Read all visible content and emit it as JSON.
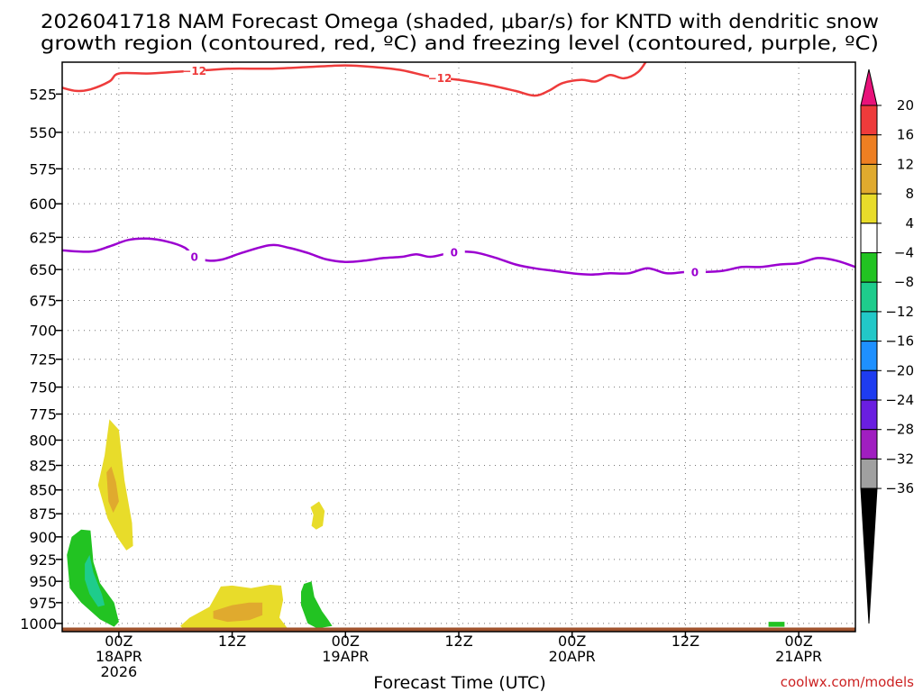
{
  "title_line1": "2026041718 NAM Forecast Omega (shaded, μbar/s) for KNTD with dendritic snow",
  "title_line2": "growth region (contoured, red, ºC) and freezing level (contoured, purple, ºC)",
  "credit": "coolwx.com/models",
  "chart_data": {
    "type": "heatmap",
    "title": "2026041718 NAM Forecast Omega (shaded, μbar/s) for KNTD with dendritic snow growth region (contoured, red, ºC) and freezing level (contoured, purple, ºC)",
    "xlabel": "Forecast Time (UTC)",
    "ylabel": "",
    "x_range_hours": [
      -6,
      78
    ],
    "y_range_mb": [
      1010,
      505
    ],
    "y_scale": "log-pressure (inverted)",
    "y_ticks": [
      525,
      550,
      575,
      600,
      625,
      650,
      675,
      700,
      725,
      750,
      775,
      800,
      825,
      850,
      875,
      900,
      925,
      950,
      975,
      1000
    ],
    "x_ticks": [
      {
        "hour": 0,
        "lines": [
          "00Z",
          "18APR",
          "2026"
        ]
      },
      {
        "hour": 12,
        "lines": [
          "12Z"
        ]
      },
      {
        "hour": 24,
        "lines": [
          "00Z",
          "19APR"
        ]
      },
      {
        "hour": 36,
        "lines": [
          "12Z"
        ]
      },
      {
        "hour": 48,
        "lines": [
          "00Z",
          "20APR"
        ]
      },
      {
        "hour": 60,
        "lines": [
          "12Z"
        ]
      },
      {
        "hour": 72,
        "lines": [
          "00Z",
          "21APR"
        ]
      }
    ],
    "grid": true,
    "colorbar": {
      "labels": [
        "20",
        "16",
        "12",
        "8",
        "4",
        "−4",
        "−8",
        "−12",
        "−16",
        "−20",
        "−24",
        "−28",
        "−32",
        "−36"
      ],
      "colors": [
        "#e8127a",
        "#ee3b3b",
        "#ee7f22",
        "#e0aa2e",
        "#e8dc2a",
        "#ffffff",
        "#22c322",
        "#1ecc8c",
        "#22c8c8",
        "#1e90ff",
        "#1e3cf0",
        "#6a1ee0",
        "#a01ec0",
        "#a0a0a0",
        "#000000"
      ],
      "position": "right"
    },
    "contours": [
      {
        "value": -12,
        "color": "#ee3b3b",
        "labels": [
          "−12",
          "−12"
        ],
        "points": [
          [
            -6,
            521
          ],
          [
            -4.5,
            523
          ],
          [
            -3,
            522
          ],
          [
            -1,
            517
          ],
          [
            0,
            512
          ],
          [
            3,
            512
          ],
          [
            6,
            511
          ],
          [
            9,
            510
          ],
          [
            12,
            509
          ],
          [
            16,
            509
          ],
          [
            20,
            508
          ],
          [
            24,
            507
          ],
          [
            27,
            508
          ],
          [
            30,
            510
          ],
          [
            33,
            514
          ],
          [
            36,
            516
          ],
          [
            39,
            519
          ],
          [
            42,
            523
          ],
          [
            44,
            526
          ],
          [
            45.5,
            523
          ],
          [
            47,
            518
          ],
          [
            49,
            516
          ],
          [
            50.5,
            517
          ],
          [
            52,
            513
          ],
          [
            53.5,
            515
          ],
          [
            55,
            511
          ],
          [
            56,
            503
          ]
        ]
      },
      {
        "value": 0,
        "color": "#9b00d0",
        "labels": [
          "0",
          "0",
          "0"
        ],
        "points": [
          [
            -6,
            635
          ],
          [
            -3,
            636
          ],
          [
            -1,
            632
          ],
          [
            1,
            627
          ],
          [
            3,
            626
          ],
          [
            5,
            628
          ],
          [
            7,
            633
          ],
          [
            8,
            640
          ],
          [
            9.5,
            643
          ],
          [
            11,
            642
          ],
          [
            13,
            637
          ],
          [
            16,
            631
          ],
          [
            18,
            633
          ],
          [
            20,
            637
          ],
          [
            22,
            642
          ],
          [
            24,
            644
          ],
          [
            26,
            643
          ],
          [
            28,
            641
          ],
          [
            30,
            640
          ],
          [
            31.5,
            638
          ],
          [
            33,
            640
          ],
          [
            35,
            637
          ],
          [
            36.5,
            636
          ],
          [
            38,
            637
          ],
          [
            40,
            641
          ],
          [
            42,
            646
          ],
          [
            44,
            649
          ],
          [
            46,
            651
          ],
          [
            48,
            653
          ],
          [
            50,
            654
          ],
          [
            52,
            653
          ],
          [
            54,
            653
          ],
          [
            56,
            649
          ],
          [
            58,
            653
          ],
          [
            60,
            652
          ],
          [
            62,
            652
          ],
          [
            64,
            651
          ],
          [
            66,
            648
          ],
          [
            68,
            648
          ],
          [
            70,
            646
          ],
          [
            72,
            645
          ],
          [
            74,
            641
          ],
          [
            76,
            643
          ],
          [
            78,
            648
          ]
        ]
      }
    ],
    "shaded_regions": [
      {
        "omega_bin": "4 to 8",
        "color": "#e8dc2a",
        "points": [
          [
            -2.2,
            845
          ],
          [
            -1.5,
            815
          ],
          [
            -1,
            780
          ],
          [
            0,
            790
          ],
          [
            0.6,
            840
          ],
          [
            1.4,
            885
          ],
          [
            1.5,
            910
          ],
          [
            0.8,
            915
          ],
          [
            -0.2,
            900
          ],
          [
            -1.2,
            880
          ]
        ]
      },
      {
        "omega_bin": "8 to 12",
        "color": "#e0aa2e",
        "points": [
          [
            -1.3,
            832
          ],
          [
            -0.8,
            826
          ],
          [
            -0.3,
            842
          ],
          [
            0,
            862
          ],
          [
            -0.6,
            874
          ],
          [
            -1.1,
            862
          ]
        ]
      },
      {
        "omega_bin": "4 to 8",
        "color": "#e8dc2a",
        "points": [
          [
            20.3,
            868
          ],
          [
            21.2,
            862
          ],
          [
            21.8,
            872
          ],
          [
            21.6,
            888
          ],
          [
            20.9,
            892
          ],
          [
            20.4,
            888
          ],
          [
            20.6,
            876
          ]
        ]
      },
      {
        "omega_bin": "4 to 8",
        "color": "#e8dc2a",
        "points": [
          [
            6.5,
            1003
          ],
          [
            7.5,
            993
          ],
          [
            9.6,
            980
          ],
          [
            10.8,
            956
          ],
          [
            12,
            955
          ],
          [
            14,
            958
          ],
          [
            16,
            954
          ],
          [
            17.2,
            955
          ],
          [
            17.4,
            972
          ],
          [
            17,
            993
          ],
          [
            18,
            1008
          ],
          [
            12,
            1010
          ],
          [
            7,
            1008
          ]
        ]
      },
      {
        "omega_bin": "8 to 12",
        "color": "#e0aa2e",
        "points": [
          [
            10,
            985
          ],
          [
            12,
            978
          ],
          [
            13.8,
            975
          ],
          [
            15.2,
            975
          ],
          [
            15.2,
            990
          ],
          [
            13.8,
            996
          ],
          [
            11.5,
            998
          ],
          [
            10,
            994
          ]
        ]
      },
      {
        "omega_bin": "-8 to -4",
        "color": "#22c322",
        "points": [
          [
            -5.5,
            920
          ],
          [
            -5,
            900
          ],
          [
            -4,
            892
          ],
          [
            -3,
            893
          ],
          [
            -2.7,
            928
          ],
          [
            -2,
            952
          ],
          [
            -0.5,
            975
          ],
          [
            0,
            998
          ],
          [
            -0.5,
            1004
          ],
          [
            -2,
            995
          ],
          [
            -4,
            975
          ],
          [
            -5.2,
            958
          ]
        ]
      },
      {
        "omega_bin": "-12 to -8",
        "color": "#1ecc8c",
        "points": [
          [
            -3.6,
            930
          ],
          [
            -3.1,
            920
          ],
          [
            -2.7,
            940
          ],
          [
            -1.8,
            965
          ],
          [
            -1.5,
            978
          ],
          [
            -2.2,
            980
          ],
          [
            -3.1,
            965
          ],
          [
            -3.6,
            948
          ]
        ]
      },
      {
        "omega_bin": "-8 to -4",
        "color": "#22c322",
        "points": [
          [
            19.6,
            953
          ],
          [
            20.4,
            950
          ],
          [
            20.7,
            968
          ],
          [
            21.5,
            985
          ],
          [
            22.2,
            996
          ],
          [
            22.6,
            1003
          ],
          [
            21,
            1006
          ],
          [
            20,
            1000
          ],
          [
            19.3,
            978
          ],
          [
            19.3,
            962
          ]
        ]
      },
      {
        "omega_bin": "-8 to -4",
        "color": "#22c322",
        "points": [
          [
            68.8,
            998
          ],
          [
            70.5,
            998
          ],
          [
            70.5,
            1004
          ],
          [
            68.8,
            1004
          ]
        ]
      }
    ],
    "terrain": {
      "color": "#a0522d",
      "top_mb": 1005
    }
  }
}
